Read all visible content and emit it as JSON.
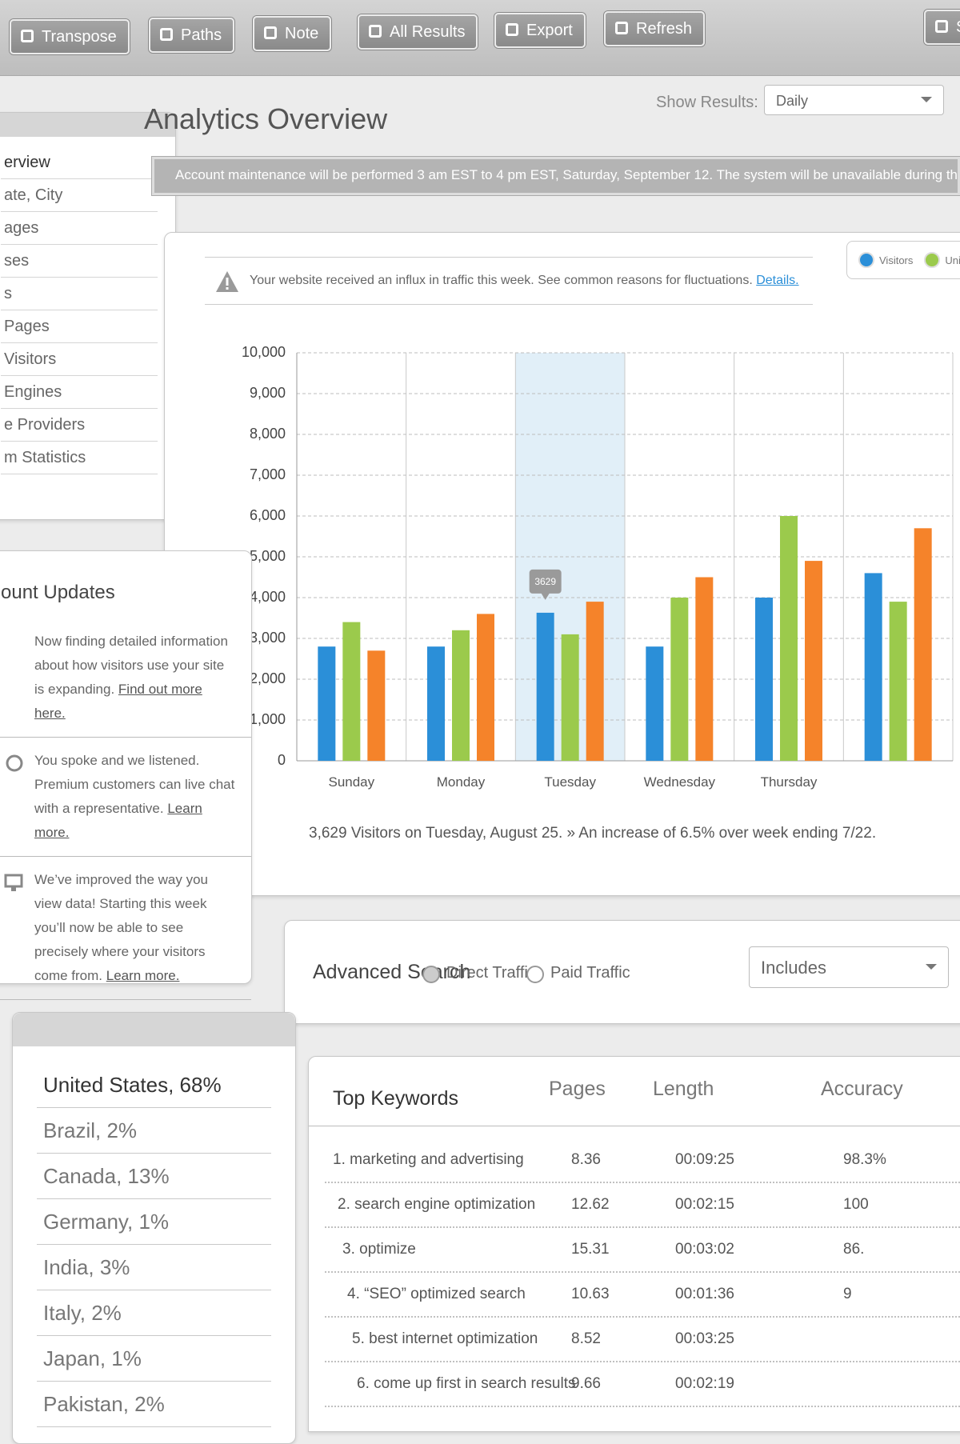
{
  "toolbar": {
    "buttons": [
      "Transpose",
      "Paths",
      "Note",
      "All Results",
      "Export",
      "Refresh",
      "Sw"
    ]
  },
  "header": {
    "title": "Analytics Overview",
    "show_results_label": "Show Results:",
    "show_results_value": "Daily"
  },
  "notice": "Account maintenance will be performed 3 am EST to 4 pm EST, Saturday, September 12. The system will be unavailable during that time.",
  "sidebar": {
    "items": [
      "erview",
      "ate, City",
      "ages",
      "ses",
      "s",
      "Pages",
      "Visitors",
      "Engines",
      "e Providers",
      "m Statistics"
    ]
  },
  "alert": {
    "text": "Your website received an influx in traffic this week. See common reasons for fluctuations.",
    "link": "Details."
  },
  "chart_data": {
    "type": "bar",
    "categories": [
      "Sunday",
      "Monday",
      "Tuesday",
      "Wednesday",
      "Thursday",
      null
    ],
    "series": [
      {
        "name": "Visitors",
        "color": "#2b8fd8",
        "values": [
          2800,
          2800,
          3629,
          2800,
          4000,
          4600
        ]
      },
      {
        "name": "Uni",
        "color": "#9bca4c",
        "values": [
          3400,
          3200,
          3100,
          4000,
          6000,
          3900
        ]
      },
      {
        "color": "#f5832a",
        "values": [
          2700,
          3600,
          3900,
          4500,
          4900,
          5700
        ]
      }
    ],
    "ylim": [
      0,
      10000
    ],
    "yticks": [
      0,
      {
        "value": 1000,
        "label": "1,000"
      },
      {
        "value": 2000,
        "label": "2,000"
      },
      {
        "value": 3000,
        "label": "3,000"
      },
      {
        "value": 4000,
        "label": "4,000"
      },
      {
        "value": 5000,
        "label": "5,000"
      },
      {
        "value": 6000,
        "label": "6,000"
      },
      {
        "value": 7000,
        "label": "7,000"
      },
      {
        "value": 8000,
        "label": "8,000"
      },
      {
        "value": 9000,
        "label": "9,000"
      },
      {
        "value": 10000,
        "label": "10,000"
      }
    ],
    "grid": true,
    "highlight": 2,
    "legend": "top-right",
    "caption": "3,629 Visitors on Tuesday, August 25. » An increase of 6.5% over week ending 7/22."
  },
  "account_updates": {
    "title": "ount Updates",
    "items": [
      {
        "text": "Now finding detailed information about how visitors use your site is expanding.",
        "link": "Find out more here."
      },
      {
        "text": "You spoke and we listened. Premium customers can live chat with a representative.",
        "link": "Learn more."
      },
      {
        "text": "We’ve improved the way you view data! Starting this week you’ll now be able to see precisely where your visitors come from.",
        "link": "Learn more."
      }
    ]
  },
  "advanced_search": {
    "title": "Advanced Search",
    "options": [
      "Direct Traffic",
      "Paid Traffic"
    ],
    "select": "Includes"
  },
  "countries": [
    "United States, 68%",
    "Brazil, 2%",
    "Canada, 13%",
    "Germany, 1%",
    "India, 3%",
    "Italy, 2%",
    "Japan, 1%",
    "Pakistan, 2%"
  ],
  "keywords": {
    "headers": [
      "Top Keywords",
      "Pages",
      "Length",
      "Accuracy"
    ],
    "rows": [
      [
        "1. marketing and advertising",
        "8.36",
        "00:09:25",
        "98.3%"
      ],
      [
        "2. search engine optimization",
        "12.62",
        "00:02:15",
        "100"
      ],
      [
        "3. optimize",
        "15.31",
        "00:03:02",
        "86."
      ],
      [
        "4. “SEO” optimized search",
        "10.63",
        "00:01:36",
        "9"
      ],
      [
        "5. best internet optimization",
        "8.52",
        "00:03:25"
      ],
      [
        "6. come up first in search results",
        "9.66",
        "00:02:19"
      ]
    ]
  }
}
